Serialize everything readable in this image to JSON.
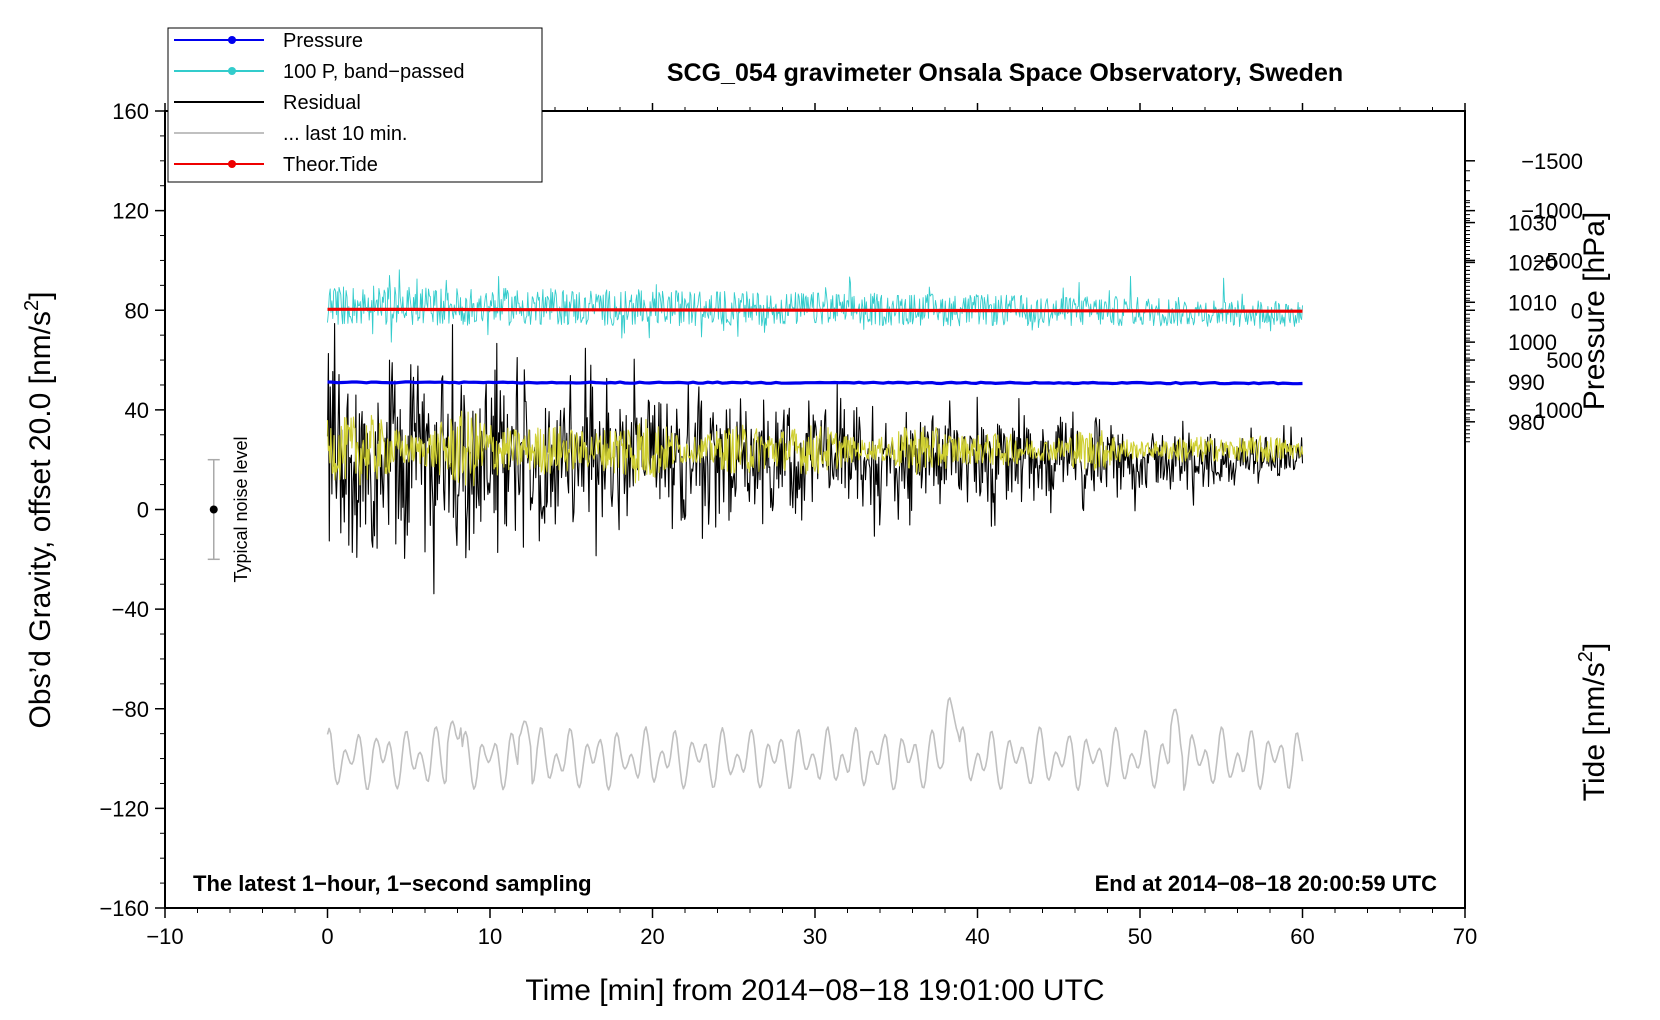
{
  "chart_data": {
    "type": "line",
    "title": "SCG_054 gravimeter Onsala Space Observatory, Sweden",
    "xlabel": "Time [min] from 2014−08−18 19:01:00 UTC",
    "ylabel_left": "Obs’d Gravity, offset 20.0 [nm/s",
    "ylabel_left_sup": "2",
    "ylabel_left_close": "]",
    "ylabel_right_pressure": "Pressure [hPa]",
    "ylabel_right_tide": "Tide [nm/s",
    "ylabel_right_tide_sup": "2",
    "ylabel_right_tide_close": "]",
    "xlim": [
      -10,
      70
    ],
    "ylim_left": [
      -160,
      160
    ],
    "pressure_axis": {
      "value_at_gravity_0": 958,
      "hpa_per_gravity_unit": 0.625,
      "ticks": [
        980,
        990,
        1000,
        1010,
        1020,
        1030
      ]
    },
    "tide_axis": {
      "value_at_gravity_0": 2000,
      "nms2_per_gravity_unit": 25,
      "ticks": [
        1000,
        500,
        0,
        -500,
        -1000,
        -1500
      ]
    },
    "x_ticks": [
      -10,
      0,
      10,
      20,
      30,
      40,
      50,
      60,
      70
    ],
    "x_tick_labels": [
      "−10",
      "0",
      "10",
      "20",
      "30",
      "40",
      "50",
      "60",
      "70"
    ],
    "y_ticks_left": [
      160,
      120,
      80,
      40,
      0,
      -40,
      -80,
      -120,
      -160
    ],
    "y_tick_labels_left": [
      "160",
      "120",
      "80",
      "40",
      "0",
      "−40",
      "−80",
      "−120",
      "−160"
    ],
    "right_tick_labels_pressure": [
      "980",
      "990",
      "1000",
      "1010",
      "1020",
      "1030"
    ],
    "right_tick_labels_tide": [
      "1000",
      "500",
      "0",
      "−500",
      "−1000",
      "−1500"
    ],
    "note_left": "The latest 1−hour, 1−second sampling",
    "note_right": "End at 2014−08−18 20:00:59 UTC",
    "noise_indicator": {
      "label": "Typical noise level",
      "x": -7,
      "center": 0,
      "low": -20,
      "high": 20
    },
    "legend": [
      {
        "label": "Pressure",
        "color": "#0000ee",
        "marker": true
      },
      {
        "label": "100 P, band−passed",
        "color": "#33cccc",
        "marker": true
      },
      {
        "label": "Residual",
        "color": "#000000",
        "marker": false
      },
      {
        "label": "... last 10 min.",
        "color": "#c0c0c0",
        "marker": false
      },
      {
        "label": "Theor.Tide",
        "color": "#ee0000",
        "marker": true
      }
    ],
    "series": [
      {
        "name": "Pressure",
        "axis": "pressure",
        "color": "#0000ee",
        "x_range": [
          0,
          60
        ],
        "start": 989.9,
        "end": 989.7
      },
      {
        "name": "100 P, band−passed",
        "axis": "gravity",
        "color": "#33cccc",
        "x_range": [
          0,
          60
        ],
        "center": 82,
        "amplitude_start": 10,
        "amplitude_end": 7
      },
      {
        "name": "Residual",
        "axis": "gravity",
        "color": "#000000",
        "x_range": [
          0,
          60
        ],
        "center": 20,
        "amplitude_start": 55,
        "amplitude_end": 10
      },
      {
        "name": "... last 10 min.",
        "axis": "gravity",
        "color": "#cfcf33",
        "x_range": [
          0,
          60
        ],
        "center": 24,
        "amplitude_start": 12,
        "amplitude_end": 4
      },
      {
        "name": "Theor.Tide",
        "axis": "tide",
        "color": "#ee0000",
        "x_range": [
          0,
          60
        ],
        "start": -10,
        "end": 10
      },
      {
        "name": "... last 10 min. (detail)",
        "axis": "gravity",
        "color": "#c0c0c0",
        "x_range": [
          0,
          60
        ],
        "center": -100,
        "amplitude": 8
      }
    ]
  }
}
